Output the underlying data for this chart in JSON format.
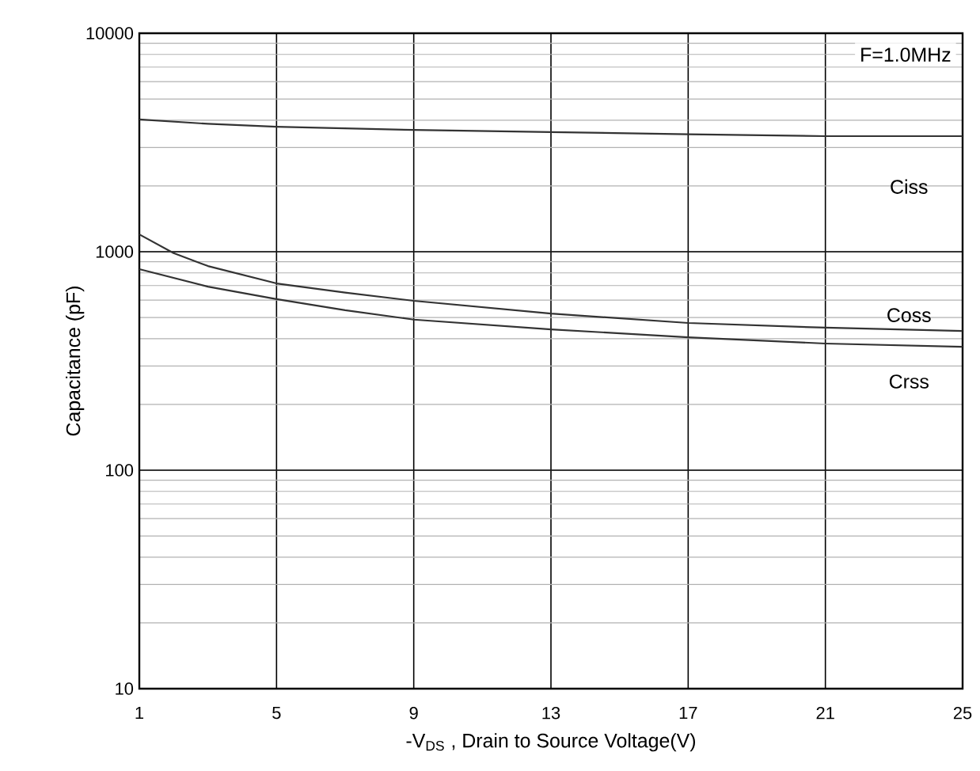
{
  "chart_data": {
    "type": "line",
    "xlabel": "-V$_{DS}$ , Drain to Source Voltage(V)",
    "ylabel": "Capacitance (pF)",
    "annotations": [
      "F=1.0MHz"
    ],
    "xlim": [
      1,
      25
    ],
    "xticks": [
      1,
      5,
      9,
      13,
      17,
      21,
      25
    ],
    "ylim": [
      10,
      10000
    ],
    "yticks": [
      10,
      100,
      1000,
      10000
    ],
    "log": "y",
    "grid": true,
    "series": [
      {
        "name": "Ciss",
        "color": "#333333",
        "x": [
          1,
          3,
          5,
          9,
          13,
          17,
          21,
          25
        ],
        "values": [
          4030,
          3850,
          3730,
          3610,
          3530,
          3450,
          3380,
          3380
        ]
      },
      {
        "name": "Coss",
        "color": "#333333",
        "x": [
          1,
          2,
          3,
          5,
          7,
          9,
          13,
          17,
          21,
          25
        ],
        "values": [
          1200,
          985,
          860,
          716,
          650,
          596,
          521,
          472,
          449,
          434
        ]
      },
      {
        "name": "Crss",
        "color": "#333333",
        "x": [
          1,
          3,
          5,
          7,
          9,
          13,
          17,
          21,
          25
        ],
        "values": [
          832,
          692,
          607,
          540,
          489,
          441,
          406,
          380,
          367
        ]
      }
    ]
  }
}
